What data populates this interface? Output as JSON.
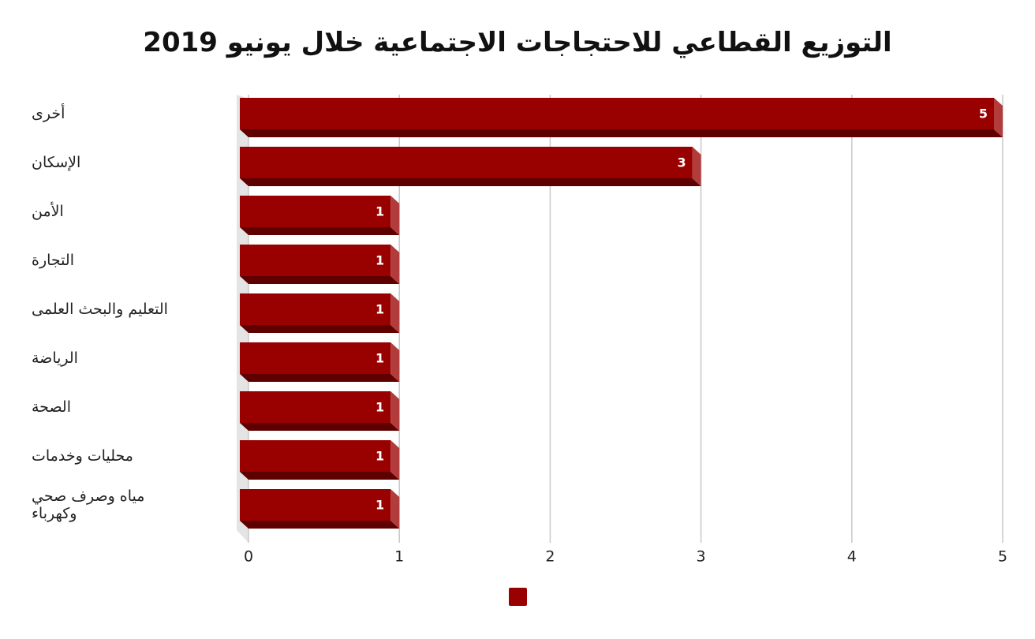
{
  "chart_data": {
    "type": "bar",
    "orientation": "horizontal",
    "title": "التوزيع القطاعي للاحتجاجات الاجتماعية خلال يونيو 2019",
    "categories": [
      "أخرى",
      "الإسكان",
      "الأمن",
      "التجارة",
      "التعليم والبحث العلمى",
      "الرياضة",
      "الصحة",
      "محليات وخدمات",
      "مياه وصرف صحي وكهرباء"
    ],
    "series": [
      {
        "color": "#990000",
        "values": [
          5,
          3,
          1,
          1,
          1,
          1,
          1,
          1,
          1
        ]
      }
    ],
    "xlim": [
      0,
      5
    ],
    "xticks": [
      0,
      1,
      2,
      3,
      4,
      5
    ],
    "grid": true
  }
}
